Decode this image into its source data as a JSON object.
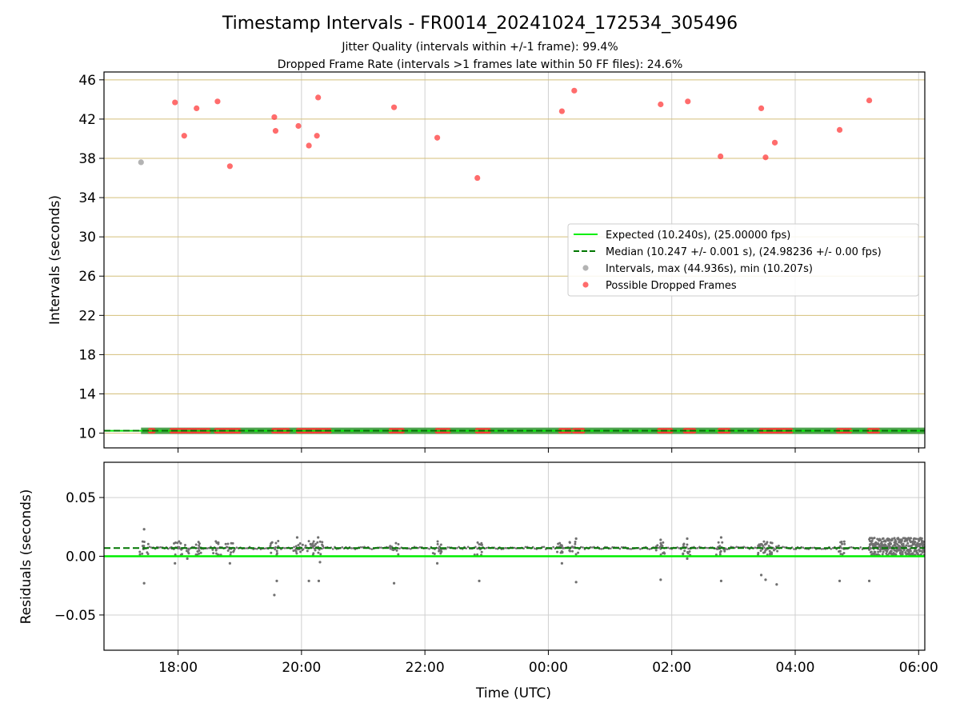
{
  "chart_data": {
    "type": "scatter",
    "title": "Timestamp Intervals - FR0014_20241024_172534_305496",
    "subtitle_lines": [
      "Jitter Quality (intervals within +/-1 frame): 99.4%",
      "Dropped Frame Rate (intervals >1 frames late within 50 FF files): 24.6%"
    ],
    "x_axis": {
      "label": "Time (UTC)",
      "range_hours_since_18": [
        -1.2,
        12.1
      ],
      "ticks": [
        {
          "v": 0,
          "label": "18:00"
        },
        {
          "v": 2,
          "label": "20:00"
        },
        {
          "v": 4,
          "label": "22:00"
        },
        {
          "v": 6,
          "label": "00:00"
        },
        {
          "v": 8,
          "label": "02:00"
        },
        {
          "v": 10,
          "label": "04:00"
        },
        {
          "v": 12,
          "label": "06:00"
        }
      ]
    },
    "panels": {
      "intervals": {
        "ylabel": "Intervals (seconds)",
        "ylim": [
          8.5,
          46.8
        ],
        "yticks": [
          10,
          14,
          18,
          22,
          26,
          30,
          34,
          38,
          42,
          46
        ],
        "hgrid_color": "#d4bf7a",
        "expected": 10.24,
        "median": 10.247,
        "normal_intervals": [
          [
            -0.6,
            37.6
          ]
        ],
        "dropped_frames": [
          [
            -0.05,
            43.7
          ],
          [
            0.1,
            40.3
          ],
          [
            0.3,
            43.1
          ],
          [
            0.64,
            43.8
          ],
          [
            0.84,
            37.2
          ],
          [
            1.56,
            42.2
          ],
          [
            1.58,
            40.8
          ],
          [
            1.95,
            41.3
          ],
          [
            2.12,
            39.3
          ],
          [
            2.25,
            40.3
          ],
          [
            2.27,
            44.2
          ],
          [
            3.5,
            43.2
          ],
          [
            4.2,
            40.1
          ],
          [
            4.85,
            36.0
          ],
          [
            6.22,
            42.8
          ],
          [
            6.42,
            44.9
          ],
          [
            7.82,
            43.5
          ],
          [
            8.26,
            43.8
          ],
          [
            8.79,
            38.2
          ],
          [
            9.45,
            43.1
          ],
          [
            9.52,
            38.1
          ],
          [
            9.67,
            39.6
          ],
          [
            10.72,
            40.9
          ],
          [
            11.2,
            43.9
          ]
        ],
        "baseline_dropped_clusters": [
          [
            -0.45,
            -0.4
          ],
          [
            -0.1,
            0.5
          ],
          [
            0.62,
            1.0
          ],
          [
            1.55,
            1.8
          ],
          [
            1.95,
            2.45
          ],
          [
            3.45,
            3.65
          ],
          [
            4.2,
            4.4
          ],
          [
            4.85,
            5.05
          ],
          [
            6.2,
            6.35
          ],
          [
            6.42,
            6.6
          ],
          [
            7.8,
            8.0
          ],
          [
            8.22,
            8.4
          ],
          [
            8.78,
            8.95
          ],
          [
            9.45,
            9.7
          ],
          [
            9.7,
            9.95
          ],
          [
            10.7,
            10.9
          ],
          [
            11.2,
            11.35
          ]
        ]
      },
      "residuals": {
        "ylabel": "Residuals (seconds)",
        "ylim": [
          -0.08,
          0.08
        ],
        "yticks": [
          {
            "v": 0.05,
            "label": "0.05"
          },
          {
            "v": 0.0,
            "label": "0.00"
          },
          {
            "v": -0.05,
            "label": "−0.05"
          }
        ],
        "expected": 0.0,
        "median": 0.007,
        "outliers": [
          [
            -0.55,
            0.023
          ],
          [
            -0.55,
            -0.023
          ],
          [
            -0.05,
            -0.006
          ],
          [
            0.15,
            -0.002
          ],
          [
            0.84,
            -0.006
          ],
          [
            1.56,
            -0.033
          ],
          [
            1.6,
            -0.021
          ],
          [
            1.93,
            0.016
          ],
          [
            2.12,
            -0.021
          ],
          [
            2.28,
            -0.021
          ],
          [
            2.27,
            0.016
          ],
          [
            2.3,
            -0.005
          ],
          [
            3.5,
            -0.023
          ],
          [
            4.2,
            -0.006
          ],
          [
            4.88,
            -0.021
          ],
          [
            6.22,
            -0.006
          ],
          [
            6.45,
            -0.022
          ],
          [
            6.45,
            0.015
          ],
          [
            7.82,
            -0.02
          ],
          [
            7.82,
            0.014
          ],
          [
            8.25,
            -0.002
          ],
          [
            8.25,
            0.015
          ],
          [
            8.8,
            -0.021
          ],
          [
            8.8,
            0.016
          ],
          [
            9.45,
            -0.016
          ],
          [
            9.52,
            -0.02
          ],
          [
            9.7,
            -0.024
          ],
          [
            10.72,
            -0.021
          ],
          [
            11.2,
            -0.021
          ]
        ],
        "cluster_times": [
          -0.55,
          -0.05,
          0.1,
          0.3,
          0.64,
          0.84,
          1.56,
          1.95,
          2.12,
          2.27,
          3.5,
          4.2,
          4.85,
          6.22,
          6.42,
          7.82,
          8.26,
          8.79,
          9.45,
          9.52,
          9.67,
          10.72
        ],
        "dense_region": [
          11.2,
          12.1
        ]
      }
    },
    "legend": {
      "placement": "center-right",
      "entries": [
        {
          "label": "Expected (10.240s), (25.00000 fps)",
          "kind": "line",
          "color": "#00ee00"
        },
        {
          "label": "Median (10.247 +/- 0.001 s), (24.98236 +/- 0.00 fps)",
          "kind": "dashed",
          "color": "#007700"
        },
        {
          "label": "Intervals, max (44.936s), min (10.207s)",
          "kind": "marker",
          "color": "#9a9a9a"
        },
        {
          "label": "Possible Dropped Frames",
          "kind": "marker",
          "color": "#ff3b3b"
        }
      ]
    },
    "colors": {
      "expected": "#00ee00",
      "median": "#007700",
      "interval_point": "#9a9a9a",
      "residual_point": "#707070",
      "dropped": "#ff3b3b",
      "baseline_band": "#3d9a3d",
      "grid": "#d0d0d0"
    }
  }
}
